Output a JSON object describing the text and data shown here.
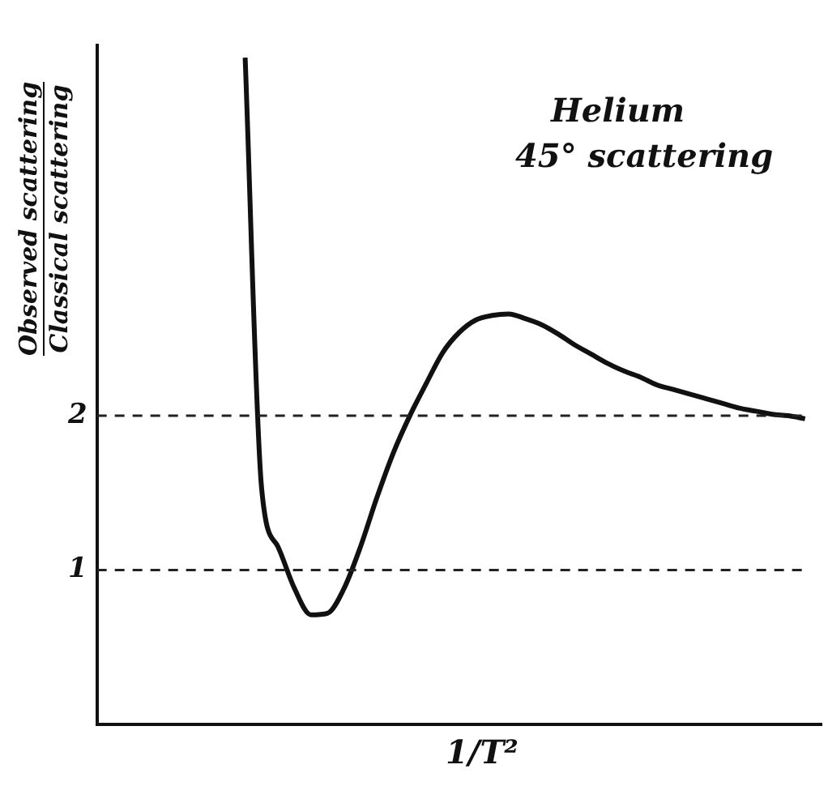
{
  "chart_data": {
    "type": "line",
    "title": "Helium",
    "subtitle": "45° scattering",
    "xlabel": "1/T²",
    "ylabel": "Observed scattering\nClassical scattering",
    "categories": [
      null,
      null,
      null,
      null,
      null,
      null,
      null,
      null,
      null,
      null,
      null,
      null,
      null,
      null,
      null,
      null,
      null,
      null,
      null,
      null,
      null,
      null,
      null,
      null,
      null,
      null,
      null,
      null,
      null,
      null,
      null,
      null,
      null,
      null,
      null,
      null,
      null,
      null,
      null,
      null,
      null,
      null,
      null,
      null,
      null
    ],
    "series": [
      {
        "color": "#111111",
        "values": [
          null,
          null,
          null,
          null,
          null,
          null,
          null,
          null,
          null,
          4.32,
          1.53,
          1.15,
          0.88,
          0.71,
          0.72,
          0.88,
          1.15,
          1.47,
          1.76,
          2.0,
          2.21,
          2.41,
          2.54,
          2.62,
          2.65,
          2.66,
          2.63,
          2.59,
          2.53,
          2.46,
          2.4,
          2.34,
          2.29,
          2.25,
          2.2,
          2.17,
          2.14,
          2.11,
          2.08,
          2.05,
          2.03,
          2.01,
          2.0,
          1.98,
          null
        ]
      }
    ],
    "ylim": [
      0,
      4.4
    ],
    "yticks": [
      1,
      2
    ],
    "tick_labels": "y",
    "grid": false,
    "legend": false,
    "marker": "none",
    "line_style": "solid",
    "ref_lines": [
      {
        "axis": "y",
        "value": 2,
        "color": "#222222",
        "line_style": "dashed"
      },
      {
        "axis": "y",
        "value": 1,
        "color": "#222222",
        "line_style": "dashed"
      }
    ]
  }
}
